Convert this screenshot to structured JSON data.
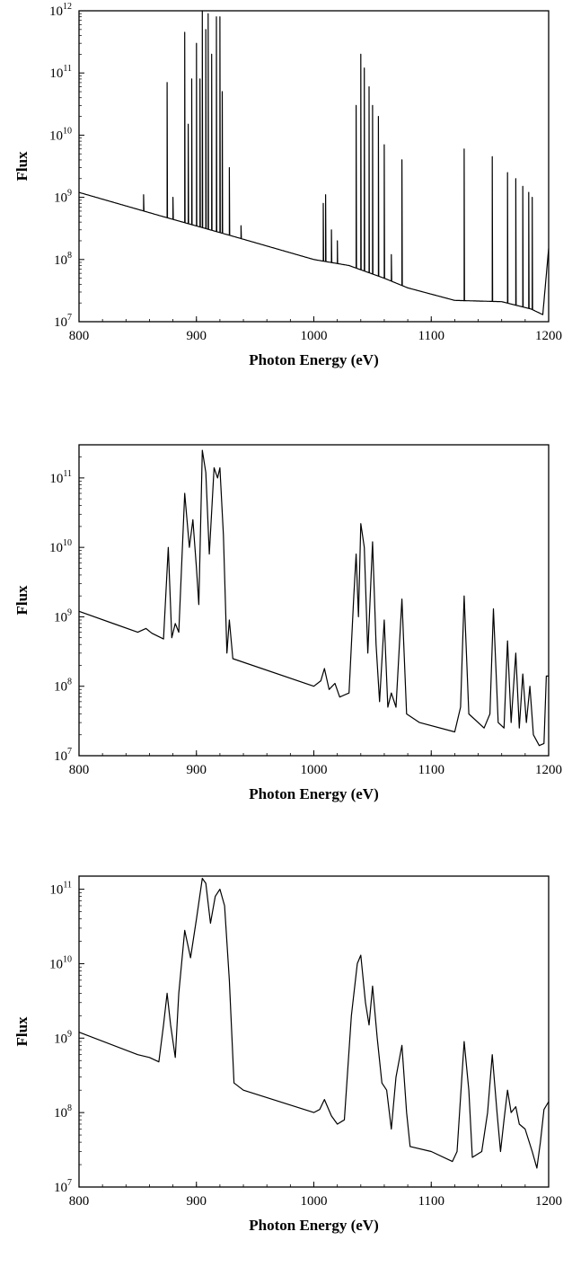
{
  "chart_data": [
    {
      "type": "line",
      "title": "",
      "xlabel": "Photon Energy (eV)",
      "ylabel": "Flux",
      "xlim": [
        800,
        1200
      ],
      "ylim": [
        10000000,
        1000000000000
      ],
      "yscale": "log",
      "grid": false,
      "x_ticks": [
        "800",
        "900",
        "1000",
        "1100",
        "1200"
      ],
      "y_tick_mantissa": "10",
      "y_tick_exponents": [
        "7",
        "8",
        "9",
        "10",
        "11",
        "12"
      ],
      "baseline": [
        [
          800,
          1200000000.0
        ],
        [
          870,
          500000000.0
        ],
        [
          930,
          240000000.0
        ],
        [
          1000,
          100000000.0
        ],
        [
          1030,
          80000000.0
        ],
        [
          1060,
          50000000.0
        ],
        [
          1080,
          35000000.0
        ],
        [
          1120,
          22000000.0
        ],
        [
          1160,
          21000000.0
        ],
        [
          1185,
          16000000.0
        ],
        [
          1195,
          13000000.0
        ],
        [
          1200,
          150000000.0
        ]
      ],
      "peaks": [
        [
          855,
          1100000000.0
        ],
        [
          875,
          70000000000.0
        ],
        [
          880,
          1000000000.0
        ],
        [
          890,
          450000000000.0
        ],
        [
          893,
          15000000000.0
        ],
        [
          896,
          80000000000.0
        ],
        [
          900,
          300000000000.0
        ],
        [
          903,
          80000000000.0
        ],
        [
          905,
          1000000000000.0
        ],
        [
          908,
          500000000000.0
        ],
        [
          910,
          900000000000.0
        ],
        [
          913,
          200000000000.0
        ],
        [
          917,
          800000000000.0
        ],
        [
          920,
          800000000000.0
        ],
        [
          922,
          50000000000.0
        ],
        [
          928,
          3000000000.0
        ],
        [
          938,
          350000000.0
        ],
        [
          1008,
          800000000.0
        ],
        [
          1010,
          1100000000.0
        ],
        [
          1015,
          300000000.0
        ],
        [
          1020,
          200000000.0
        ],
        [
          1036,
          30000000000.0
        ],
        [
          1040,
          200000000000.0
        ],
        [
          1043,
          120000000000.0
        ],
        [
          1047,
          60000000000.0
        ],
        [
          1050,
          30000000000.0
        ],
        [
          1055,
          20000000000.0
        ],
        [
          1060,
          7000000000.0
        ],
        [
          1066,
          120000000.0
        ],
        [
          1075,
          4000000000.0
        ],
        [
          1128,
          6000000000.0
        ],
        [
          1152,
          4500000000.0
        ],
        [
          1165,
          2500000000.0
        ],
        [
          1172,
          2000000000.0
        ],
        [
          1178,
          1500000000.0
        ],
        [
          1183,
          1200000000.0
        ],
        [
          1186,
          1000000000.0
        ]
      ]
    },
    {
      "type": "line",
      "title": "",
      "xlabel": "Photon Energy (eV)",
      "ylabel": "Flux",
      "xlim": [
        800,
        1200
      ],
      "ylim": [
        10000000,
        300000000000
      ],
      "yscale": "log",
      "grid": false,
      "x_ticks": [
        "800",
        "900",
        "1000",
        "1100",
        "1200"
      ],
      "y_tick_mantissa": "10",
      "y_tick_exponents": [
        "7",
        "8",
        "9",
        "10",
        "11"
      ],
      "curve": [
        [
          800,
          1200000000.0
        ],
        [
          850,
          600000000.0
        ],
        [
          857,
          680000000.0
        ],
        [
          862,
          580000000.0
        ],
        [
          872,
          480000000.0
        ],
        [
          876,
          10000000000.0
        ],
        [
          879,
          500000000.0
        ],
        [
          882,
          800000000.0
        ],
        [
          885,
          600000000.0
        ],
        [
          890,
          60000000000.0
        ],
        [
          894,
          10000000000.0
        ],
        [
          897,
          25000000000.0
        ],
        [
          900,
          5000000000.0
        ],
        [
          902,
          1500000000.0
        ],
        [
          905,
          250000000000.0
        ],
        [
          908,
          120000000000.0
        ],
        [
          911,
          8000000000.0
        ],
        [
          915,
          140000000000.0
        ],
        [
          918,
          100000000000.0
        ],
        [
          920,
          140000000000.0
        ],
        [
          923,
          15000000000.0
        ],
        [
          926,
          300000000.0
        ],
        [
          928,
          900000000.0
        ],
        [
          931,
          250000000.0
        ],
        [
          1000,
          100000000.0
        ],
        [
          1006,
          120000000.0
        ],
        [
          1009,
          180000000.0
        ],
        [
          1013,
          90000000.0
        ],
        [
          1018,
          110000000.0
        ],
        [
          1022,
          70000000.0
        ],
        [
          1030,
          80000000.0
        ],
        [
          1034,
          2000000000.0
        ],
        [
          1036,
          8000000000.0
        ],
        [
          1038,
          1000000000.0
        ],
        [
          1040,
          22000000000.0
        ],
        [
          1043,
          10000000000.0
        ],
        [
          1046,
          300000000.0
        ],
        [
          1050,
          12000000000.0
        ],
        [
          1053,
          400000000.0
        ],
        [
          1056,
          60000000.0
        ],
        [
          1060,
          900000000.0
        ],
        [
          1063,
          50000000.0
        ],
        [
          1066,
          80000000.0
        ],
        [
          1070,
          50000000.0
        ],
        [
          1075,
          1800000000.0
        ],
        [
          1079,
          40000000.0
        ],
        [
          1090,
          30000000.0
        ],
        [
          1120,
          22000000.0
        ],
        [
          1125,
          50000000.0
        ],
        [
          1128,
          2000000000.0
        ],
        [
          1132,
          40000000.0
        ],
        [
          1145,
          25000000.0
        ],
        [
          1150,
          40000000.0
        ],
        [
          1153,
          1300000000.0
        ],
        [
          1157,
          30000000.0
        ],
        [
          1162,
          25000000.0
        ],
        [
          1165,
          450000000.0
        ],
        [
          1168,
          30000000.0
        ],
        [
          1172,
          300000000.0
        ],
        [
          1175,
          25000000.0
        ],
        [
          1178,
          150000000.0
        ],
        [
          1181,
          30000000.0
        ],
        [
          1184,
          100000000.0
        ],
        [
          1187,
          20000000.0
        ],
        [
          1192,
          14000000.0
        ],
        [
          1196,
          15000000.0
        ],
        [
          1198,
          140000000.0
        ],
        [
          1200,
          140000000.0
        ]
      ]
    },
    {
      "type": "line",
      "title": "",
      "xlabel": "Photon Energy (eV)",
      "ylabel": "Flux",
      "xlim": [
        800,
        1200
      ],
      "ylim": [
        10000000,
        150000000000
      ],
      "yscale": "log",
      "grid": false,
      "x_ticks": [
        "800",
        "900",
        "1000",
        "1100",
        "1200"
      ],
      "y_tick_mantissa": "10",
      "y_tick_exponents": [
        "7",
        "8",
        "9",
        "10",
        "11"
      ],
      "curve": [
        [
          800,
          1200000000.0
        ],
        [
          850,
          600000000.0
        ],
        [
          860,
          550000000.0
        ],
        [
          868,
          480000000.0
        ],
        [
          872,
          1500000000.0
        ],
        [
          875,
          4000000000.0
        ],
        [
          878,
          1500000000.0
        ],
        [
          882,
          550000000.0
        ],
        [
          885,
          4000000000.0
        ],
        [
          890,
          28000000000.0
        ],
        [
          895,
          12000000000.0
        ],
        [
          900,
          40000000000.0
        ],
        [
          905,
          140000000000.0
        ],
        [
          908,
          120000000000.0
        ],
        [
          912,
          35000000000.0
        ],
        [
          916,
          80000000000.0
        ],
        [
          920,
          100000000000.0
        ],
        [
          924,
          60000000000.0
        ],
        [
          928,
          6000000000.0
        ],
        [
          932,
          250000000.0
        ],
        [
          940,
          200000000.0
        ],
        [
          1000,
          100000000.0
        ],
        [
          1005,
          110000000.0
        ],
        [
          1009,
          150000000.0
        ],
        [
          1015,
          90000000.0
        ],
        [
          1020,
          70000000.0
        ],
        [
          1026,
          80000000.0
        ],
        [
          1032,
          2000000000.0
        ],
        [
          1037,
          10000000000.0
        ],
        [
          1040,
          13000000000.0
        ],
        [
          1044,
          3000000000.0
        ],
        [
          1047,
          1500000000.0
        ],
        [
          1050,
          5000000000.0
        ],
        [
          1054,
          1000000000.0
        ],
        [
          1058,
          250000000.0
        ],
        [
          1062,
          200000000.0
        ],
        [
          1066,
          60000000.0
        ],
        [
          1070,
          300000000.0
        ],
        [
          1075,
          800000000.0
        ],
        [
          1079,
          100000000.0
        ],
        [
          1082,
          35000000.0
        ],
        [
          1100,
          30000000.0
        ],
        [
          1118,
          22000000.0
        ],
        [
          1122,
          30000000.0
        ],
        [
          1128,
          900000000.0
        ],
        [
          1132,
          200000000.0
        ],
        [
          1135,
          25000000.0
        ],
        [
          1143,
          30000000.0
        ],
        [
          1148,
          100000000.0
        ],
        [
          1152,
          600000000.0
        ],
        [
          1156,
          100000000.0
        ],
        [
          1159,
          30000000.0
        ],
        [
          1162,
          80000000.0
        ],
        [
          1165,
          200000000.0
        ],
        [
          1168,
          100000000.0
        ],
        [
          1172,
          120000000.0
        ],
        [
          1175,
          70000000.0
        ],
        [
          1180,
          60000000.0
        ],
        [
          1186,
          30000000.0
        ],
        [
          1190,
          18000000.0
        ],
        [
          1193,
          40000000.0
        ],
        [
          1196,
          110000000.0
        ],
        [
          1200,
          140000000.0
        ]
      ]
    }
  ]
}
